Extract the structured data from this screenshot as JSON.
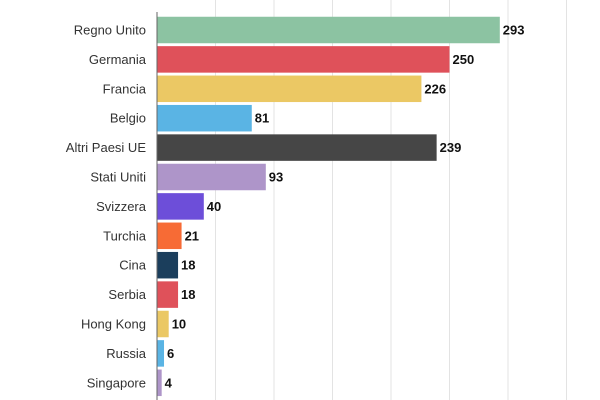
{
  "chart_data": {
    "type": "bar",
    "orientation": "horizontal",
    "title": "",
    "xlabel": "",
    "ylabel": "",
    "xlim": [
      0,
      350
    ],
    "grid": true,
    "legend": "none",
    "categories": [
      "Regno Unito",
      "Germania",
      "Francia",
      "Belgio",
      "Altri Paesi UE",
      "Stati Uniti",
      "Svizzera",
      "Turchia",
      "Cina",
      "Serbia",
      "Hong Kong",
      "Russia",
      "Singapore"
    ],
    "values": [
      293,
      250,
      226,
      81,
      239,
      93,
      40,
      21,
      18,
      18,
      10,
      6,
      4
    ],
    "colors": [
      "#8cc3a2",
      "#df515a",
      "#ebc864",
      "#5ab4e4",
      "#464646",
      "#ae95c9",
      "#6d4ed9",
      "#f76b35",
      "#1b3e5c",
      "#df515a",
      "#ebc864",
      "#5ab4e4",
      "#ae95c9"
    ]
  }
}
